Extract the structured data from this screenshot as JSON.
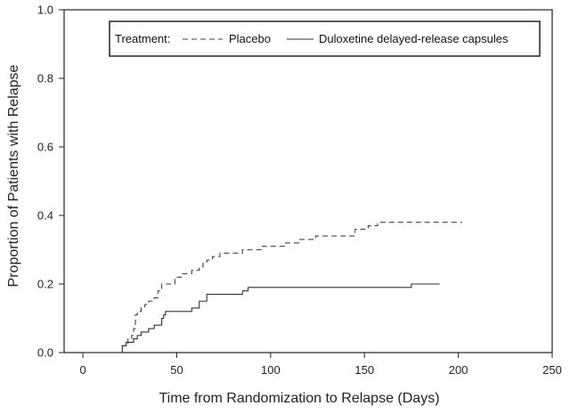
{
  "chart_data": {
    "type": "line",
    "xlabel": "Time from Randomization to Relapse (Days)",
    "ylabel": "Proportion of Patients with Relapse",
    "xlim": [
      -10,
      250
    ],
    "ylim": [
      0,
      1.0
    ],
    "x_ticks": [
      "0",
      "50",
      "100",
      "150",
      "200",
      "250"
    ],
    "y_ticks": [
      "0.0",
      "0.2",
      "0.4",
      "0.6",
      "0.8",
      "1.0"
    ],
    "x_tick_values": [
      0,
      50,
      100,
      150,
      200,
      250
    ],
    "y_tick_values": [
      0,
      0.2,
      0.4,
      0.6,
      0.8,
      1.0
    ],
    "legend": {
      "placement": "top-right",
      "prefix": "Treatment:",
      "entries": [
        "Placebo",
        "Duloxetine delayed-release capsules"
      ]
    },
    "series": [
      {
        "name": "Placebo",
        "style": "dashed",
        "step": true,
        "x": [
          0,
          21,
          24,
          26,
          27,
          28,
          29,
          31,
          33,
          35,
          38,
          40,
          42,
          49,
          53,
          58,
          62,
          64,
          66,
          69,
          73,
          78,
          85,
          95,
          101,
          108,
          115,
          119,
          124,
          128,
          136,
          145,
          149,
          152,
          157,
          160,
          162,
          202
        ],
        "y": [
          0,
          0.02,
          0.04,
          0.05,
          0.07,
          0.11,
          0.12,
          0.13,
          0.14,
          0.15,
          0.16,
          0.18,
          0.2,
          0.22,
          0.23,
          0.24,
          0.25,
          0.26,
          0.27,
          0.28,
          0.29,
          0.29,
          0.3,
          0.31,
          0.31,
          0.32,
          0.33,
          0.33,
          0.34,
          0.34,
          0.34,
          0.36,
          0.36,
          0.37,
          0.38,
          0.38,
          0.38,
          0.38
        ],
        "color": "#444444"
      },
      {
        "name": "Duloxetine delayed-release capsules",
        "style": "solid",
        "step": true,
        "x": [
          0,
          21,
          23,
          27,
          29,
          31,
          35,
          38,
          42,
          43,
          44,
          46,
          58,
          62,
          66,
          68,
          85,
          88,
          100,
          120,
          150,
          175,
          190
        ],
        "y": [
          0,
          0.02,
          0.03,
          0.04,
          0.05,
          0.06,
          0.07,
          0.08,
          0.1,
          0.11,
          0.12,
          0.12,
          0.13,
          0.15,
          0.17,
          0.17,
          0.18,
          0.19,
          0.19,
          0.19,
          0.19,
          0.2,
          0.2
        ],
        "color": "#333333"
      }
    ]
  }
}
